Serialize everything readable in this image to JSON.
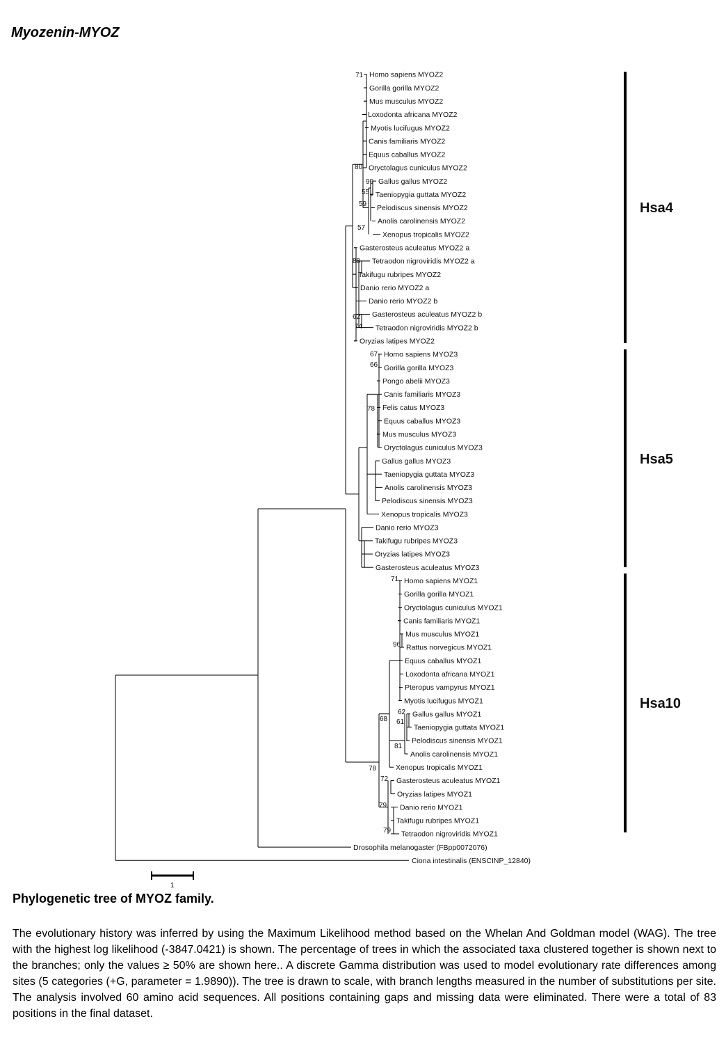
{
  "title": "Myozenin-MYOZ",
  "clades": [
    {
      "label": "Hsa4",
      "taxa": [
        "Homo sapiens MYOZ2",
        "Gorilla gorilla MYOZ2",
        "Mus musculus MYOZ2",
        "Loxodonta africana MYOZ2",
        "Myotis lucifugus MYOZ2",
        "Canis familiaris MYOZ2",
        "Equus caballus MYOZ2",
        "Oryctolagus cuniculus MYOZ2",
        "Gallus gallus MYOZ2",
        "Taeniopygia guttata MYOZ2",
        "Pelodiscus sinensis MYOZ2",
        "Anolis carolinensis MYOZ2",
        "Xenopus tropicalis MYOZ2",
        "Gasterosteus aculeatus MYOZ2 a",
        "Tetraodon nigroviridis MYOZ2 a",
        "Takifugu rubripes MYOZ2",
        "Danio rerio MYOZ2 a",
        "Danio rerio MYOZ2 b",
        "Gasterosteus aculeatus MYOZ2 b",
        "Tetraodon nigroviridis MYOZ2 b",
        "Oryzias latipes MYOZ2"
      ]
    },
    {
      "label": "Hsa5",
      "taxa": [
        "Homo sapiens MYOZ3",
        "Gorilla gorilla MYOZ3",
        "Pongo abelii MYOZ3",
        "Canis familiaris MYOZ3",
        "Felis catus MYOZ3",
        "Equus caballus MYOZ3",
        "Mus musculus MYOZ3",
        "Oryctolagus cuniculus MYOZ3",
        "Gallus gallus MYOZ3",
        "Taeniopygia guttata MYOZ3",
        "Anolis carolinensis MYOZ3",
        "Pelodiscus sinensis MYOZ3",
        "Xenopus tropicalis MYOZ3",
        "Danio rerio MYOZ3",
        "Takifugu rubripes MYOZ3",
        "Oryzias latipes MYOZ3",
        "Gasterosteus aculeatus MYOZ3"
      ]
    },
    {
      "label": "Hsa10",
      "taxa": [
        "Homo sapiens MYOZ1",
        "Gorilla gorilla MYOZ1",
        "Oryctolagus cuniculus MYOZ1",
        "Canis familiaris MYOZ1",
        "Mus musculus MYOZ1",
        "Rattus norvegicus MYOZ1",
        "Equus caballus MYOZ1",
        "Loxodonta africana MYOZ1",
        "Pteropus vampyrus MYOZ1",
        "Myotis lucifugus MYOZ1",
        "Gallus gallus MYOZ1",
        "Taeniopygia guttata MYOZ1",
        "Pelodiscus sinensis MYOZ1",
        "Anolis carolinensis MYOZ1",
        "Xenopus tropicalis MYOZ1",
        "Gasterosteus aculeatus MYOZ1",
        "Oryzias latipes MYOZ1",
        "Danio rerio MYOZ1",
        "Takifugu rubripes MYOZ1",
        "Tetraodon nigroviridis MYOZ1"
      ]
    }
  ],
  "outgroups": [
    "Drosophila melanogaster (FBpp0072076)",
    "Ciona intestinalis (ENSCINP_12840)"
  ],
  "bootstrap": {
    "myoz2": [
      "71",
      "80",
      "99",
      "55",
      "59",
      "57",
      "88",
      "62",
      "74"
    ],
    "myoz3": [
      "67",
      "66",
      "78"
    ],
    "myoz1": [
      "71",
      "96",
      "62",
      "61",
      "81",
      "68",
      "78",
      "72",
      "79",
      "79"
    ]
  },
  "scale_label": "1",
  "caption_title": "Phylogenetic tree of MYOZ family.",
  "caption_text": "The evolutionary history was inferred by using the Maximum Likelihood method based on the Whelan And Goldman model (WAG). The tree with the highest log likelihood (-3847.0421) is shown. The percentage of trees in which the associated taxa clustered together is shown next to the branches; only the values ≥ 50% are shown here.. A discrete Gamma distribution was used to model evolutionary rate differences among sites (5 categories (+G, parameter = 1.9890)). The tree is drawn to scale, with branch lengths measured in the number of substitutions per site. The analysis involved 60 amino acid sequences. All positions containing gaps and missing data were eliminated. There were a total of 83 positions in the final dataset."
}
